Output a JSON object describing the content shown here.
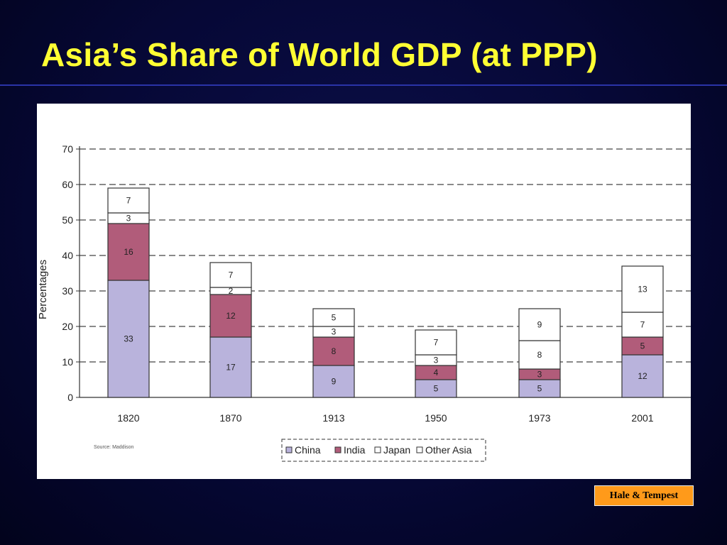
{
  "slide": {
    "title": "Asia’s Share of World GDP (at PPP)",
    "credit": "Hale & Tempest"
  },
  "chart_data": {
    "type": "bar",
    "stacked": true,
    "categories": [
      "1820",
      "1870",
      "1913",
      "1950",
      "1973",
      "2001"
    ],
    "series": [
      {
        "name": "China",
        "values": [
          33,
          17,
          9,
          5,
          5,
          12
        ],
        "color": "#b9b3dc"
      },
      {
        "name": "India",
        "values": [
          16,
          12,
          8,
          4,
          3,
          5
        ],
        "color": "#b15c7a"
      },
      {
        "name": "Japan",
        "values": [
          3,
          2,
          3,
          3,
          8,
          7
        ],
        "color": "#ffffff"
      },
      {
        "name": "Other Asia",
        "values": [
          7,
          7,
          5,
          7,
          9,
          13
        ],
        "color": "#ffffff"
      }
    ],
    "ylabel": "Percentages",
    "xlabel": "",
    "ylim": [
      0,
      70
    ],
    "yticks": [
      0,
      10,
      20,
      30,
      40,
      50,
      60,
      70
    ],
    "grid": true,
    "legend": "bottom-center",
    "source_note": "Source: Maddison"
  }
}
